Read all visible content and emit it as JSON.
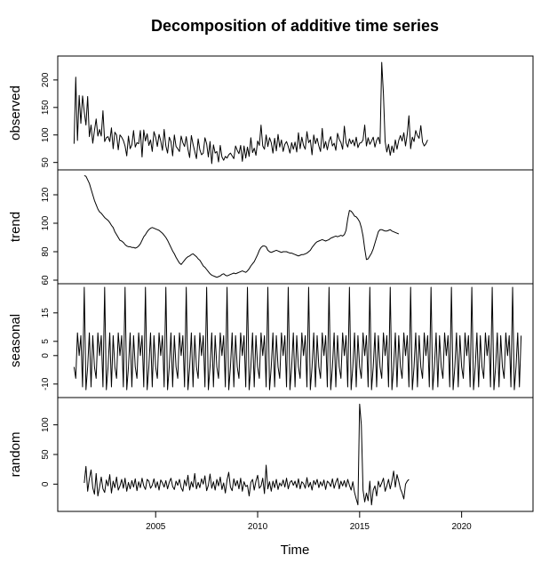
{
  "chart_data": {
    "type": "line",
    "title": "Decomposition of additive time series",
    "xlabel": "Time",
    "xlim": [
      2000.2,
      2023.5
    ],
    "x_ticks": [
      "2005",
      "2010",
      "2015",
      "2020"
    ],
    "panels": [
      {
        "name": "observed",
        "ylabel": "observed",
        "ylim": [
          43,
          237
        ],
        "y_ticks": [
          "50",
          "100",
          "150",
          "200"
        ],
        "x_start": 2001.0,
        "step": 0.0833333,
        "values": [
          84,
          205,
          90,
          172,
          121,
          171,
          142,
          118,
          170,
          97,
          118,
          85,
          108,
          129,
          98,
          110,
          98,
          144,
          88,
          95,
          97,
          88,
          113,
          75,
          105,
          100,
          73,
          100,
          96,
          90,
          80,
          62,
          98,
          75,
          82,
          108,
          78,
          86,
          84,
          108,
          60,
          109,
          89,
          102,
          81,
          91,
          70,
          106,
          96,
          79,
          101,
          89,
          72,
          110,
          80,
          67,
          96,
          88,
          62,
          100,
          79,
          75,
          70,
          98,
          86,
          79,
          97,
          74,
          59,
          99,
          83,
          70,
          57,
          93,
          73,
          64,
          67,
          95,
          84,
          60,
          88,
          48,
          82,
          67,
          70,
          51,
          81,
          60,
          54,
          61,
          58,
          64,
          67,
          62,
          57,
          80,
          72,
          66,
          81,
          52,
          80,
          58,
          78,
          61,
          95,
          68,
          76,
          63,
          89,
          81,
          118,
          80,
          74,
          100,
          79,
          95,
          86,
          67,
          94,
          71,
          101,
          78,
          91,
          70,
          83,
          88,
          79,
          67,
          86,
          74,
          87,
          69,
          104,
          75,
          96,
          81,
          74,
          106,
          86,
          91,
          64,
          100,
          84,
          94,
          80,
          70,
          112,
          76,
          88,
          73,
          89,
          97,
          80,
          85,
          72,
          103,
          92,
          86,
          74,
          116,
          86,
          78,
          93,
          84,
          91,
          80,
          96,
          77,
          85,
          86,
          91,
          118,
          80,
          95,
          83,
          89,
          96,
          78,
          90,
          96,
          84,
          232,
          175,
          88,
          69,
          83,
          63,
          80,
          68,
          91,
          74,
          90,
          99,
          89,
          104,
          80,
          101,
          135,
          75,
          96,
          88,
          108,
          99,
          94,
          117,
          87,
          80,
          84,
          91
        ]
      },
      {
        "name": "trend",
        "ylabel": "trend",
        "ylim": [
          60,
          135
        ],
        "y_ticks": [
          "60",
          "80",
          "100",
          "120"
        ],
        "x_start": 2001.5,
        "step": 0.0833333,
        "values": [
          133.5,
          133.0,
          130.5,
          128.0,
          124.0,
          120.0,
          116.0,
          113.0,
          110.0,
          108.0,
          107.0,
          105.5,
          104.0,
          103.0,
          102.0,
          100.5,
          98.5,
          97.0,
          94.0,
          92.0,
          90.0,
          88.0,
          87.5,
          86.5,
          85.0,
          84.0,
          83.5,
          83.5,
          83.0,
          83.0,
          82.5,
          83.0,
          84.0,
          85.5,
          88.0,
          90.5,
          92.0,
          94.0,
          95.5,
          96.5,
          97.0,
          96.5,
          96.0,
          95.5,
          95.0,
          94.0,
          93.0,
          91.5,
          90.0,
          88.0,
          85.5,
          83.0,
          80.5,
          78.5,
          76.0,
          74.0,
          72.0,
          71.0,
          72.5,
          74.0,
          75.5,
          76.5,
          77.0,
          78.0,
          78.5,
          77.5,
          76.5,
          75.0,
          74.0,
          72.0,
          70.0,
          69.0,
          67.5,
          66.0,
          64.5,
          63.5,
          63.0,
          62.5,
          62.0,
          62.5,
          63.0,
          64.0,
          64.5,
          63.5,
          63.0,
          63.5,
          64.0,
          64.5,
          65.0,
          64.5,
          65.0,
          65.5,
          66.0,
          66.5,
          66.0,
          65.5,
          66.5,
          68.0,
          70.0,
          71.5,
          73.0,
          75.5,
          78.0,
          81.0,
          83.0,
          84.0,
          84.0,
          83.5,
          81.0,
          80.0,
          79.5,
          80.0,
          80.5,
          81.0,
          80.5,
          80.0,
          79.5,
          80.0,
          80.0,
          80.0,
          79.5,
          79.0,
          79.0,
          78.5,
          78.0,
          77.5,
          77.0,
          77.5,
          78.0,
          78.0,
          78.5,
          79.0,
          80.0,
          81.0,
          83.0,
          84.5,
          86.0,
          87.0,
          87.5,
          88.0,
          88.5,
          88.0,
          87.5,
          88.0,
          88.5,
          89.5,
          90.0,
          90.5,
          91.0,
          90.5,
          91.0,
          91.5,
          91.0,
          92.0,
          95.0,
          103.0,
          109.0,
          108.5,
          107.0,
          105.0,
          104.5,
          103.0,
          101.0,
          97.0,
          91.0,
          82.0,
          74.5,
          75.0,
          77.0,
          79.0,
          82.0,
          86.0,
          90.0,
          94.0,
          95.5,
          95.5,
          95.0,
          94.5,
          94.5,
          95.0,
          95.5,
          94.5,
          94.0,
          93.5,
          93.0,
          92.5
        ]
      },
      {
        "name": "seasonal",
        "ylabel": "seasonal",
        "ylim": [
          -13.5,
          24
        ],
        "y_ticks": [
          "-10",
          "0",
          "5",
          "15"
        ],
        "x_start": 2001.0,
        "step": 0.0833333,
        "cycle_start": 10,
        "pattern": [
          8,
          0,
          7,
          -11,
          24,
          -12,
          -4,
          8,
          -11,
          7,
          -4,
          -8
        ]
      },
      {
        "name": "random",
        "ylabel": "random",
        "ylim": [
          -40,
          140
        ],
        "y_ticks": [
          "0",
          "50",
          "100"
        ],
        "x_start": 2001.5,
        "step": 0.0833333,
        "values": [
          2,
          30,
          -12,
          9,
          24,
          -6,
          -17,
          18,
          -20,
          -5,
          12,
          -8,
          -14,
          7,
          -3,
          16,
          -15,
          5,
          -6,
          12,
          -10,
          -3,
          8,
          -7,
          10,
          -12,
          3,
          -8,
          6,
          -5,
          9,
          -11,
          4,
          -6,
          10,
          -3,
          -9,
          8,
          5,
          -7,
          -2,
          9,
          -6,
          4,
          -10,
          7,
          2,
          -5,
          6,
          -8,
          3,
          10,
          -4,
          -9,
          5,
          -2,
          8,
          -6,
          -12,
          7,
          -3,
          15,
          -10,
          4,
          -5,
          18,
          -8,
          3,
          -6,
          9,
          0,
          14,
          -11,
          -2,
          17,
          -7,
          4,
          -10,
          8,
          -3,
          12,
          -9,
          2,
          -15,
          7,
          20,
          -5,
          -11,
          9,
          -3,
          6,
          -8,
          10,
          -12,
          4,
          -4,
          -2,
          -20,
          3,
          8,
          -10,
          5,
          15,
          -7,
          -3,
          10,
          -16,
          32,
          -8,
          4,
          -12,
          5,
          -6,
          8,
          -9,
          2,
          -3,
          7,
          -5,
          10,
          -8,
          3,
          6,
          -2,
          5,
          -6,
          9,
          -8,
          4,
          1,
          -7,
          11,
          -5,
          3,
          -10,
          6,
          -1,
          8,
          -6,
          4,
          -3,
          7,
          -9,
          5,
          2,
          -4,
          9,
          -7,
          3,
          10,
          -8,
          5,
          -3,
          6,
          -5,
          8,
          -2,
          -10,
          4,
          -14,
          -25,
          -35,
          135,
          100,
          -10,
          -30,
          -15,
          -28,
          5,
          -35,
          -10,
          -3,
          -20,
          5,
          -5,
          2,
          10,
          -12,
          -3,
          8,
          -8,
          5,
          22,
          -5,
          16,
          5,
          -8,
          -15,
          -25,
          0,
          5,
          8
        ]
      }
    ]
  }
}
